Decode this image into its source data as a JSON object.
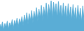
{
  "chart_data": {
    "type": "area",
    "categories": [
      null,
      null,
      null,
      null,
      null,
      null,
      null,
      null,
      null,
      null,
      null,
      null,
      null,
      null,
      null,
      null,
      null,
      null,
      null,
      null,
      null,
      null,
      null,
      null,
      null,
      null,
      null,
      null,
      null,
      null,
      null,
      null,
      null,
      null,
      null,
      null,
      null,
      null,
      null,
      null,
      null,
      null,
      null,
      null,
      null,
      null,
      null,
      null,
      null,
      null,
      null,
      null,
      null,
      null,
      null,
      null,
      null,
      null,
      null,
      null,
      null,
      null,
      null,
      null,
      null,
      null,
      null,
      null,
      null,
      null
    ],
    "values": [
      60,
      55,
      63,
      52,
      61,
      56,
      64,
      53,
      62,
      57,
      66,
      54,
      65,
      59,
      68,
      56,
      67,
      61,
      70,
      58,
      72,
      63,
      75,
      60,
      74,
      65,
      78,
      62,
      77,
      67,
      82,
      64,
      80,
      68,
      85,
      65,
      83,
      70,
      88,
      66,
      86,
      72,
      91,
      67,
      89,
      73,
      87,
      68,
      90,
      71,
      85,
      67,
      88,
      69,
      84,
      66,
      87,
      68,
      83,
      65,
      86,
      67,
      82,
      64,
      85,
      66,
      81,
      63,
      84,
      65
    ],
    "color": "#5aadd6",
    "ylim": [
      51,
      92
    ],
    "grid": false,
    "tick_labels": false
  }
}
